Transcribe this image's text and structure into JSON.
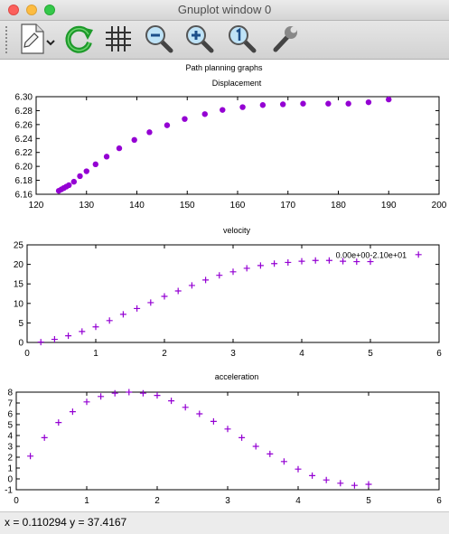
{
  "window": {
    "title": "Gnuplot window 0"
  },
  "toolbar": {
    "buttons": [
      {
        "name": "export-button",
        "icon": "document-export-icon"
      },
      {
        "name": "replot-button",
        "icon": "refresh-arrow-icon"
      },
      {
        "name": "grid-button",
        "icon": "grid-icon"
      },
      {
        "name": "zoom-out-button",
        "icon": "zoom-out-icon"
      },
      {
        "name": "zoom-in-button",
        "icon": "zoom-in-icon"
      },
      {
        "name": "zoom-reset-button",
        "icon": "zoom-reset-icon"
      },
      {
        "name": "settings-button",
        "icon": "wrench-icon"
      }
    ]
  },
  "status": {
    "text": "x = 0.110294 y = 37.4167"
  },
  "colors": {
    "series": "#9400d3",
    "background": "#ffffff",
    "axis": "#000000"
  },
  "chart_data": [
    {
      "type": "scatter",
      "supertitle": "Path planning graphs",
      "title": "Displacement",
      "xlim": [
        120,
        200
      ],
      "ylim": [
        6.16,
        6.3
      ],
      "xticks": [
        120,
        130,
        140,
        150,
        160,
        170,
        180,
        190,
        200
      ],
      "yticks": [
        6.16,
        6.18,
        6.2,
        6.22,
        6.24,
        6.26,
        6.28,
        6.3
      ],
      "marker": "circle",
      "points": [
        [
          124.5,
          6.165
        ],
        [
          125.0,
          6.167
        ],
        [
          125.5,
          6.169
        ],
        [
          126.0,
          6.171
        ],
        [
          126.5,
          6.173
        ],
        [
          127.5,
          6.178
        ],
        [
          128.7,
          6.186
        ],
        [
          130.0,
          6.193
        ],
        [
          131.8,
          6.203
        ],
        [
          134.0,
          6.214
        ],
        [
          136.5,
          6.226
        ],
        [
          139.5,
          6.238
        ],
        [
          142.5,
          6.249
        ],
        [
          146.0,
          6.259
        ],
        [
          149.5,
          6.268
        ],
        [
          153.5,
          6.275
        ],
        [
          157.0,
          6.281
        ],
        [
          161.0,
          6.285
        ],
        [
          165.0,
          6.288
        ],
        [
          169.0,
          6.289
        ],
        [
          173.0,
          6.29
        ],
        [
          178.0,
          6.29
        ],
        [
          182.0,
          6.29
        ],
        [
          186.0,
          6.292
        ],
        [
          190.0,
          6.296
        ]
      ]
    },
    {
      "type": "scatter",
      "title": "velocity",
      "xlim": [
        0,
        6
      ],
      "ylim": [
        0,
        25
      ],
      "xticks": [
        0,
        1,
        2,
        3,
        4,
        5,
        6
      ],
      "yticks": [
        0,
        5,
        10,
        15,
        20,
        25
      ],
      "marker": "plus",
      "annotation": "0.00e+00-2.10e+01",
      "annotation_point": [
        5.7,
        22.5
      ],
      "points": [
        [
          0.2,
          0.1
        ],
        [
          0.4,
          0.8
        ],
        [
          0.6,
          1.7
        ],
        [
          0.8,
          2.8
        ],
        [
          1.0,
          4.0
        ],
        [
          1.2,
          5.6
        ],
        [
          1.4,
          7.2
        ],
        [
          1.6,
          8.7
        ],
        [
          1.8,
          10.2
        ],
        [
          2.0,
          11.8
        ],
        [
          2.2,
          13.2
        ],
        [
          2.4,
          14.6
        ],
        [
          2.6,
          16.0
        ],
        [
          2.8,
          17.2
        ],
        [
          3.0,
          18.1
        ],
        [
          3.2,
          19.0
        ],
        [
          3.4,
          19.7
        ],
        [
          3.6,
          20.2
        ],
        [
          3.8,
          20.5
        ],
        [
          4.0,
          20.8
        ],
        [
          4.2,
          21.0
        ],
        [
          4.4,
          21.0
        ],
        [
          4.6,
          20.8
        ],
        [
          4.8,
          20.7
        ],
        [
          5.0,
          20.7
        ]
      ]
    },
    {
      "type": "scatter",
      "title": "acceleration",
      "xlim": [
        0,
        6
      ],
      "ylim": [
        -1,
        8
      ],
      "xticks": [
        0,
        1,
        2,
        3,
        4,
        5,
        6
      ],
      "yticks": [
        -1,
        0,
        1,
        2,
        3,
        4,
        5,
        6,
        7,
        8
      ],
      "marker": "plus",
      "points": [
        [
          0.2,
          2.1
        ],
        [
          0.4,
          3.8
        ],
        [
          0.6,
          5.2
        ],
        [
          0.8,
          6.2
        ],
        [
          1.0,
          7.1
        ],
        [
          1.2,
          7.6
        ],
        [
          1.4,
          7.9
        ],
        [
          1.6,
          8.0
        ],
        [
          1.8,
          7.9
        ],
        [
          2.0,
          7.7
        ],
        [
          2.2,
          7.2
        ],
        [
          2.4,
          6.6
        ],
        [
          2.6,
          6.0
        ],
        [
          2.8,
          5.3
        ],
        [
          3.0,
          4.6
        ],
        [
          3.2,
          3.8
        ],
        [
          3.4,
          3.0
        ],
        [
          3.6,
          2.3
        ],
        [
          3.8,
          1.6
        ],
        [
          4.0,
          0.9
        ],
        [
          4.2,
          0.3
        ],
        [
          4.4,
          -0.1
        ],
        [
          4.6,
          -0.4
        ],
        [
          4.8,
          -0.6
        ],
        [
          5.0,
          -0.5
        ]
      ]
    }
  ]
}
